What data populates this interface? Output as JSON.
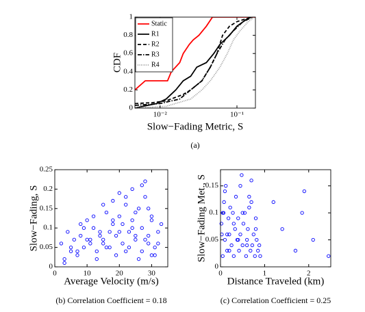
{
  "chart_data": [
    {
      "type": "line",
      "xlabel": "Slow−Fading Metric, S",
      "ylabel": "CDF",
      "caption": "(a)",
      "xscale": "log",
      "xlim": [
        0.0047,
        0.174
      ],
      "xticks": [
        {
          "value": 0.01,
          "label": "10⁻²"
        },
        {
          "value": 0.1,
          "label": "10⁻¹"
        }
      ],
      "ylim": [
        0,
        1
      ],
      "yticks": [
        0,
        0.2,
        0.4,
        0.6,
        0.8,
        1
      ],
      "legend": "upper left",
      "series": [
        {
          "name": "Static",
          "color": "#ff0000",
          "linestyle": "solid",
          "x": [
            0.0047,
            0.0064,
            0.0125,
            0.014,
            0.018,
            0.02,
            0.024,
            0.027,
            0.032,
            0.04,
            0.048,
            0.174
          ],
          "values": [
            0.2,
            0.3,
            0.3,
            0.4,
            0.5,
            0.6,
            0.7,
            0.75,
            0.8,
            0.9,
            1,
            1
          ]
        },
        {
          "name": "R1",
          "color": "#000000",
          "linestyle": "solid",
          "x": [
            0.0047,
            0.006,
            0.009,
            0.012,
            0.016,
            0.02,
            0.025,
            0.03,
            0.04,
            0.05,
            0.06,
            0.08,
            0.1,
            0.13,
            0.15
          ],
          "values": [
            0,
            0.02,
            0.05,
            0.1,
            0.2,
            0.3,
            0.35,
            0.45,
            0.5,
            0.6,
            0.7,
            0.8,
            0.9,
            0.97,
            1
          ]
        },
        {
          "name": "R2",
          "color": "#000000",
          "linestyle": "dashed",
          "x": [
            0.0047,
            0.008,
            0.012,
            0.02,
            0.025,
            0.035,
            0.045,
            0.055,
            0.065,
            0.08,
            0.1,
            0.13,
            0.16
          ],
          "values": [
            0.05,
            0.06,
            0.08,
            0.15,
            0.2,
            0.3,
            0.45,
            0.6,
            0.8,
            0.9,
            0.95,
            0.98,
            1
          ]
        },
        {
          "name": "R3",
          "color": "#000000",
          "linestyle": "dashdot",
          "x": [
            0.0047,
            0.01,
            0.018,
            0.025,
            0.035,
            0.045,
            0.055,
            0.07,
            0.09,
            0.12,
            0.16
          ],
          "values": [
            0.03,
            0.05,
            0.1,
            0.2,
            0.3,
            0.45,
            0.6,
            0.75,
            0.85,
            0.95,
            1
          ]
        },
        {
          "name": "R4",
          "color": "#999999",
          "linestyle": "dotted",
          "x": [
            0.0047,
            0.012,
            0.025,
            0.035,
            0.045,
            0.06,
            0.075,
            0.09,
            0.11,
            0.14,
            0.17
          ],
          "values": [
            0,
            0.02,
            0.1,
            0.2,
            0.3,
            0.45,
            0.6,
            0.75,
            0.85,
            0.95,
            1
          ]
        }
      ]
    },
    {
      "type": "scatter",
      "xlabel": "Average Velocity (m/s)",
      "ylabel": "Slow−Fading, S",
      "caption": "(b) Correlation Coefficient = 0.18",
      "color": "#0000ff",
      "xlim": [
        0,
        35
      ],
      "xticks": [
        0,
        10,
        20,
        30
      ],
      "ylim": [
        0,
        0.25
      ],
      "yticks": [
        0,
        0.05,
        0.1,
        0.15,
        0.2,
        0.25
      ],
      "x": [
        2,
        3,
        4,
        5,
        6,
        7,
        8,
        9,
        10,
        11,
        12,
        13,
        14,
        15,
        16,
        17,
        18,
        19,
        20,
        21,
        22,
        23,
        24,
        25,
        26,
        27,
        28,
        29,
        30,
        31,
        32,
        33,
        3,
        5,
        7,
        9,
        11,
        13,
        15,
        17,
        19,
        21,
        23,
        25,
        27,
        29,
        31,
        10,
        12,
        14,
        16,
        18,
        20,
        22,
        24,
        26,
        28,
        30,
        32,
        20,
        24,
        27,
        29,
        8,
        18,
        25,
        28,
        30,
        15,
        22
      ],
      "values": [
        0.06,
        0.02,
        0.09,
        0.04,
        0.07,
        0.03,
        0.08,
        0.05,
        0.12,
        0.06,
        0.1,
        0.04,
        0.09,
        0.07,
        0.14,
        0.05,
        0.11,
        0.08,
        0.13,
        0.06,
        0.16,
        0.09,
        0.12,
        0.07,
        0.15,
        0.1,
        0.18,
        0.08,
        0.13,
        0.05,
        0.09,
        0.11,
        0.01,
        0.05,
        0.04,
        0.1,
        0.07,
        0.02,
        0.06,
        0.09,
        0.03,
        0.11,
        0.05,
        0.08,
        0.04,
        0.06,
        0.03,
        0.07,
        0.13,
        0.08,
        0.05,
        0.12,
        0.09,
        0.04,
        0.1,
        0.02,
        0.07,
        0.03,
        0.06,
        0.19,
        0.2,
        0.21,
        0.15,
        0.11,
        0.17,
        0.14,
        0.22,
        0.12,
        0.16,
        0.18
      ]
    },
    {
      "type": "scatter",
      "xlabel": "Distance Traveled (km)",
      "ylabel": "Slow−Fading Met., S",
      "caption": "(c) Correlation Coefficient = 0.25",
      "color": "#0000ff",
      "xlim": [
        0,
        2.5
      ],
      "xticks": [
        0,
        1,
        2
      ],
      "ylim": [
        0,
        0.18
      ],
      "yticks": [
        0,
        0.05,
        0.1,
        0.15
      ],
      "x": [
        0.02,
        0.05,
        0.08,
        0.1,
        0.12,
        0.15,
        0.18,
        0.2,
        0.22,
        0.25,
        0.28,
        0.3,
        0.33,
        0.35,
        0.38,
        0.4,
        0.42,
        0.45,
        0.48,
        0.5,
        0.52,
        0.55,
        0.58,
        0.6,
        0.62,
        0.65,
        0.68,
        0.7,
        0.72,
        0.75,
        0.78,
        0.8,
        0.82,
        0.85,
        0.88,
        0.9,
        0.05,
        0.1,
        0.15,
        0.2,
        0.3,
        0.4,
        0.5,
        0.6,
        0.7,
        0.8,
        0.03,
        0.07,
        1.2,
        1.4,
        1.85,
        1.9,
        2.1,
        2.45,
        1.7,
        0.45,
        0.65
      ],
      "values": [
        0.08,
        0.02,
        0.12,
        0.05,
        0.15,
        0.03,
        0.09,
        0.06,
        0.11,
        0.04,
        0.1,
        0.02,
        0.07,
        0.13,
        0.05,
        0.09,
        0.03,
        0.06,
        0.17,
        0.04,
        0.08,
        0.1,
        0.02,
        0.05,
        0.07,
        0.13,
        0.03,
        0.16,
        0.04,
        0.06,
        0.02,
        0.09,
        0.05,
        0.03,
        0.04,
        0.02,
        0.1,
        0.14,
        0.06,
        0.03,
        0.08,
        0.05,
        0.1,
        0.04,
        0.12,
        0.07,
        0.06,
        0.1,
        0.12,
        0.07,
        0.1,
        0.14,
        0.05,
        0.02,
        0.03,
        0.15,
        0.11
      ]
    }
  ]
}
